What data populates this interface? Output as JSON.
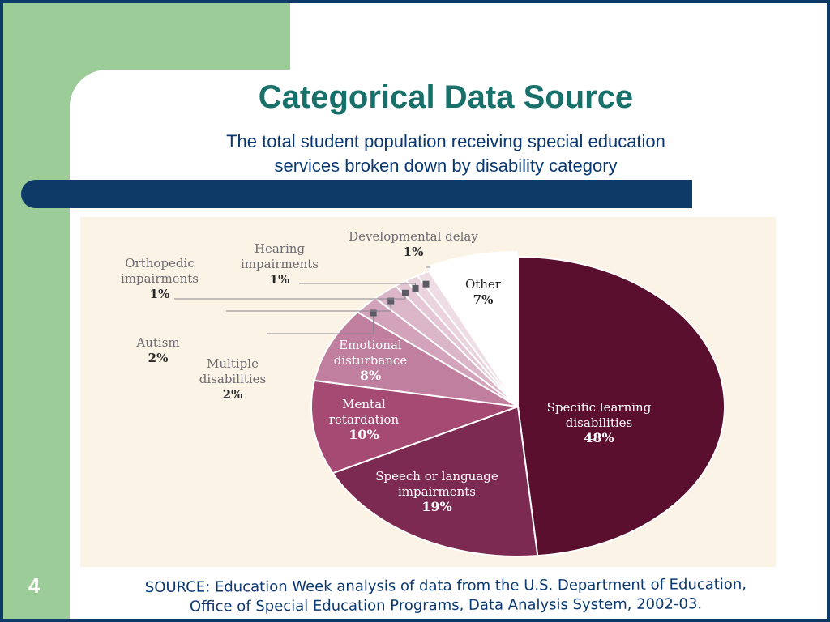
{
  "slide": {
    "title": "Categorical Data Source",
    "subtitle_lines": [
      "The total student population receiving special education",
      "services broken down by disability category"
    ],
    "slide_number": "4",
    "source_lines": [
      "SOURCE: Education Week analysis of data from the U.S. Department of Education,",
      "Office of Special Education Programs, Data Analysis System, 2002-03."
    ]
  },
  "colors": {
    "frame": "#0d3a66",
    "accent_green": "#9ccc97",
    "title": "#17706a",
    "subtitle": "#0a3870",
    "chart_background": "#faf3e6"
  },
  "chart_data": {
    "type": "pie",
    "slices": [
      {
        "name_lines": [
          "Specific learning",
          "disabilities"
        ],
        "pct_label": "48%",
        "value": 48,
        "color": "#5a0f2e"
      },
      {
        "name_lines": [
          "Speech or language",
          "impairments"
        ],
        "pct_label": "19%",
        "value": 19,
        "color": "#7d2a52"
      },
      {
        "name_lines": [
          "Mental",
          "retardation"
        ],
        "pct_label": "10%",
        "value": 10,
        "color": "#a54a73"
      },
      {
        "name_lines": [
          "Emotional",
          "disturbance"
        ],
        "pct_label": "8%",
        "value": 8,
        "color": "#c07f9f"
      },
      {
        "name_lines": [
          "Multiple",
          "disabilities"
        ],
        "pct_label": "2%",
        "value": 2,
        "color": "#d2a3ba"
      },
      {
        "name_lines": [
          "Autism"
        ],
        "pct_label": "2%",
        "value": 2,
        "color": "#dbb6c8"
      },
      {
        "name_lines": [
          "Orthopedic",
          "impairments"
        ],
        "pct_label": "1%",
        "value": 1,
        "color": "#e4c6d4"
      },
      {
        "name_lines": [
          "Hearing",
          "impairments"
        ],
        "pct_label": "1%",
        "value": 1,
        "color": "#ead3dd"
      },
      {
        "name_lines": [
          "Developmental delay"
        ],
        "pct_label": "1%",
        "value": 1,
        "color": "#efdde5"
      },
      {
        "name_lines": [
          "Other"
        ],
        "pct_label": "7%",
        "value": 7,
        "color": "#ffffff"
      }
    ]
  }
}
